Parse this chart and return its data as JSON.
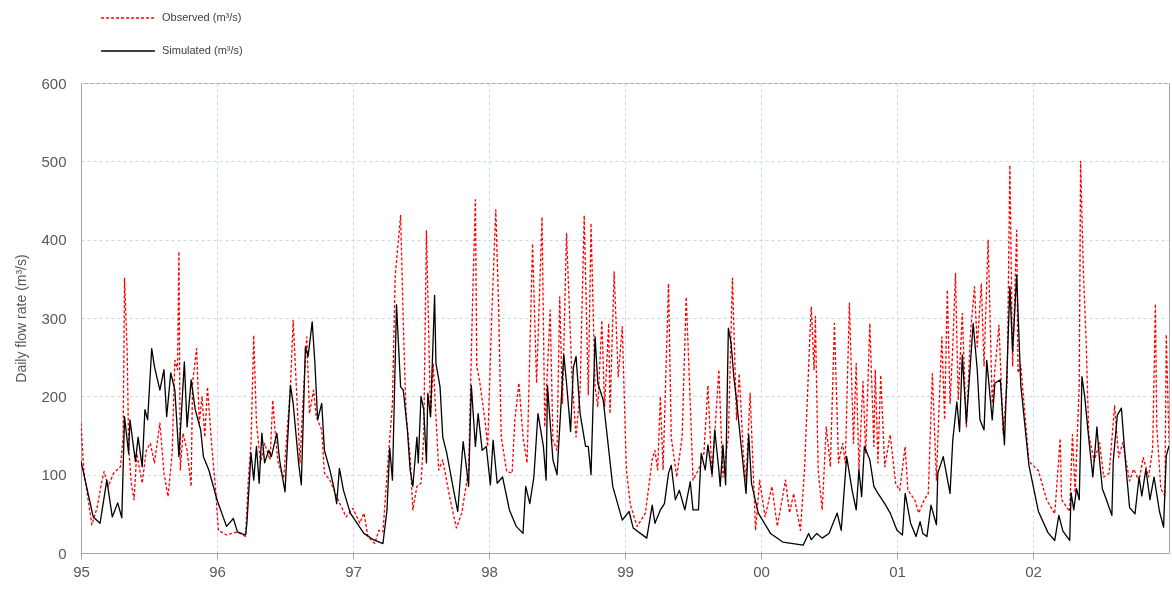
{
  "chart_data": {
    "type": "line",
    "ylabel": "Daily flow rate (m³/s)",
    "xlim": [
      1995,
      2003
    ],
    "xticks": [
      {
        "value": 1995,
        "label": "95"
      },
      {
        "value": 1996,
        "label": "96"
      },
      {
        "value": 1997,
        "label": "97"
      },
      {
        "value": 1998,
        "label": "98"
      },
      {
        "value": 1999,
        "label": "99"
      },
      {
        "value": 2000,
        "label": "00"
      },
      {
        "value": 2001,
        "label": "01"
      },
      {
        "value": 2002,
        "label": "02"
      }
    ],
    "ylim": [
      0,
      600
    ],
    "yticks": [
      0,
      100,
      200,
      300,
      400,
      500,
      600
    ],
    "grid": true,
    "legend": "top left",
    "series": [
      {
        "name": "Observed (m³/s)",
        "color": "#ff0000",
        "line_style": "dotted",
        "x": [
          1995,
          1995.02,
          1995.08,
          1995.12,
          1995.15,
          1995.17,
          1995.2,
          1995.24,
          1995.29,
          1995.31,
          1995.32,
          1995.34,
          1995.35,
          1995.37,
          1995.39,
          1995.41,
          1995.45,
          1995.48,
          1995.51,
          1995.54,
          1995.58,
          1995.61,
          1995.64,
          1995.67,
          1995.69,
          1995.71,
          1995.72,
          1995.73,
          1995.75,
          1995.78,
          1995.81,
          1995.82,
          1995.85,
          1995.87,
          1995.89,
          1995.91,
          1995.93,
          1995.96,
          1995.99,
          1996.01,
          1996.07,
          1996.15,
          1996.21,
          1996.23,
          1996.25,
          1996.27,
          1996.29,
          1996.32,
          1996.35,
          1996.39,
          1996.41,
          1996.43,
          1996.45,
          1996.49,
          1996.52,
          1996.54,
          1996.56,
          1996.58,
          1996.61,
          1996.63,
          1996.66,
          1996.68,
          1996.71,
          1996.73,
          1996.77,
          1996.79,
          1996.83,
          1996.89,
          1996.95,
          1997,
          1997.05,
          1997.08,
          1997.11,
          1997.16,
          1997.19,
          1997.22,
          1997.26,
          1997.29,
          1997.31,
          1997.35,
          1997.37,
          1997.39,
          1997.42,
          1997.44,
          1997.47,
          1997.5,
          1997.52,
          1997.54,
          1997.57,
          1997.59,
          1997.63,
          1997.66,
          1997.71,
          1997.76,
          1997.8,
          1997.85,
          1997.88,
          1997.9,
          1997.91,
          1997.93,
          1997.97,
          1997.99,
          1998.02,
          1998.05,
          1998.07,
          1998.09,
          1998.13,
          1998.17,
          1998.19,
          1998.22,
          1998.25,
          1998.28,
          1998.32,
          1998.35,
          1998.39,
          1998.41,
          1998.45,
          1998.47,
          1998.5,
          1998.52,
          1998.54,
          1998.57,
          1998.61,
          1998.64,
          1998.67,
          1998.7,
          1998.73,
          1998.75,
          1998.78,
          1998.8,
          1998.83,
          1998.85,
          1998.88,
          1998.89,
          1998.92,
          1998.95,
          1998.98,
          1999.01,
          1999.04,
          1999.09,
          1999.15,
          1999.2,
          1999.22,
          1999.24,
          1999.26,
          1999.28,
          1999.32,
          1999.34,
          1999.38,
          1999.42,
          1999.45,
          1999.48,
          1999.5,
          1999.54,
          1999.58,
          1999.61,
          1999.64,
          1999.69,
          1999.72,
          1999.76,
          1999.79,
          1999.82,
          1999.84,
          1999.87,
          1999.89,
          1999.92,
          1999.96,
          1999.99,
          2000.03,
          2000.08,
          2000.12,
          2000.18,
          2000.21,
          2000.24,
          2000.29,
          2000.32,
          2000.36,
          2000.37,
          2000.39,
          2000.4,
          2000.42,
          2000.45,
          2000.48,
          2000.51,
          2000.54,
          2000.57,
          2000.6,
          2000.62,
          2000.65,
          2000.68,
          2000.7,
          2000.72,
          2000.75,
          2000.77,
          2000.8,
          2000.83,
          2000.84,
          2000.86,
          2000.88,
          2000.91,
          2000.95,
          2000.99,
          2001.02,
          2001.06,
          2001.08,
          2001.13,
          2001.16,
          2001.2,
          2001.23,
          2001.26,
          2001.29,
          2001.31,
          2001.33,
          2001.35,
          2001.37,
          2001.39,
          2001.41,
          2001.43,
          2001.45,
          2001.48,
          2001.51,
          2001.54,
          2001.57,
          2001.59,
          2001.62,
          2001.64,
          2001.67,
          2001.7,
          2001.72,
          2001.75,
          2001.78,
          2001.81,
          2001.83,
          2001.85,
          2001.88,
          2001.89,
          2001.91,
          2001.97,
          2002.04,
          2002.1,
          2002.16,
          2002.2,
          2002.21,
          2002.25,
          2002.27,
          2002.29,
          2002.31,
          2002.34,
          2002.35,
          2002.37,
          2002.39,
          2002.41,
          2002.45,
          2002.49,
          2002.52,
          2002.56,
          2002.6,
          2002.63,
          2002.66,
          2002.71,
          2002.74,
          2002.78,
          2002.81,
          2002.85,
          2002.88,
          2002.9,
          2002.91,
          2002.94,
          2002.97,
          2002.98,
          2003
        ],
        "values": [
          166,
          106,
          36,
          59,
          89,
          104,
          85,
          102,
          110,
          148,
          351,
          255,
          136,
          89,
          68,
          127,
          89,
          131,
          140,
          115,
          166,
          102,
          72,
          127,
          246,
          234,
          385,
          106,
          153,
          131,
          85,
          217,
          261,
          166,
          200,
          148,
          212,
          140,
          80,
          29,
          23,
          27,
          21,
          93,
          140,
          278,
          166,
          115,
          140,
          119,
          195,
          148,
          115,
          95,
          166,
          212,
          297,
          225,
          115,
          187,
          276,
          178,
          208,
          174,
          157,
          102,
          93,
          68,
          46,
          57,
          38,
          51,
          21,
          12,
          29,
          27,
          123,
          191,
          353,
          431,
          293,
          178,
          123,
          55,
          85,
          89,
          148,
          412,
          174,
          242,
          106,
          119,
          72,
          32,
          51,
          106,
          327,
          451,
          238,
          221,
          170,
          136,
          302,
          438,
          319,
          148,
          104,
          102,
          170,
          217,
          148,
          115,
          395,
          217,
          429,
          161,
          310,
          144,
          131,
          327,
          191,
          408,
          225,
          148,
          208,
          431,
          202,
          421,
          212,
          187,
          297,
          187,
          293,
          178,
          359,
          225,
          289,
          106,
          61,
          34,
          51,
          119,
          131,
          106,
          200,
          106,
          344,
          148,
          97,
          148,
          327,
          191,
          93,
          106,
          127,
          214,
          97,
          234,
          97,
          148,
          351,
          170,
          229,
          127,
          93,
          204,
          29,
          93,
          46,
          85,
          34,
          93,
          51,
          76,
          29,
          106,
          280,
          314,
          234,
          302,
          106,
          55,
          161,
          110,
          293,
          115,
          140,
          115,
          319,
          140,
          242,
          106,
          219,
          127,
          293,
          136,
          234,
          115,
          227,
          110,
          151,
          89,
          80,
          136,
          80,
          68,
          51,
          68,
          76,
          229,
          93,
          191,
          276,
          170,
          336,
          191,
          263,
          357,
          195,
          306,
          161,
          280,
          340,
          263,
          344,
          238,
          400,
          191,
          234,
          291,
          153,
          217,
          495,
          238,
          412,
          230,
          240,
          117,
          105,
          68,
          50,
          146,
          68,
          58,
          53,
          151,
          77,
          215,
          500,
          362,
          274,
          151,
          117,
          141,
          97,
          102,
          188,
          122,
          141,
          92,
          107,
          92,
          122,
          97,
          134,
          318,
          161,
          82,
          73,
          279,
          141
        ]
      },
      {
        "name": "Simulated (m³/s)",
        "color": "#000000",
        "line_style": "solid",
        "x": [
          1995,
          1995.09,
          1995.14,
          1995.19,
          1995.23,
          1995.27,
          1995.3,
          1995.32,
          1995.35,
          1995.36,
          1995.4,
          1995.42,
          1995.45,
          1995.47,
          1995.49,
          1995.52,
          1995.54,
          1995.58,
          1995.61,
          1995.63,
          1995.66,
          1995.69,
          1995.72,
          1995.76,
          1995.78,
          1995.81,
          1995.84,
          1995.88,
          1995.9,
          1995.94,
          1996,
          1996.07,
          1996.12,
          1996.15,
          1996.21,
          1996.22,
          1996.25,
          1996.27,
          1996.29,
          1996.31,
          1996.33,
          1996.35,
          1996.38,
          1996.4,
          1996.44,
          1996.46,
          1996.5,
          1996.54,
          1996.56,
          1996.6,
          1996.62,
          1996.65,
          1996.67,
          1996.7,
          1996.72,
          1996.74,
          1996.77,
          1996.79,
          1996.83,
          1996.86,
          1996.88,
          1996.9,
          1996.93,
          1996.98,
          1997.08,
          1997.15,
          1997.22,
          1997.25,
          1997.27,
          1997.29,
          1997.32,
          1997.35,
          1997.37,
          1997.4,
          1997.42,
          1997.44,
          1997.47,
          1997.48,
          1997.5,
          1997.52,
          1997.54,
          1997.55,
          1997.57,
          1997.6,
          1997.61,
          1997.64,
          1997.66,
          1997.69,
          1997.74,
          1997.77,
          1997.81,
          1997.83,
          1997.85,
          1997.87,
          1997.9,
          1997.92,
          1997.95,
          1997.98,
          1998.01,
          1998.03,
          1998.06,
          1998.1,
          1998.15,
          1998.2,
          1998.25,
          1998.27,
          1998.3,
          1998.33,
          1998.36,
          1998.4,
          1998.42,
          1998.43,
          1998.45,
          1998.47,
          1998.5,
          1998.53,
          1998.55,
          1998.57,
          1998.6,
          1998.62,
          1998.64,
          1998.67,
          1998.71,
          1998.73,
          1998.75,
          1998.78,
          1998.8,
          1998.84,
          1998.87,
          1998.91,
          1998.98,
          1999.03,
          1999.06,
          1999.16,
          1999.2,
          1999.22,
          1999.26,
          1999.29,
          1999.32,
          1999.34,
          1999.37,
          1999.4,
          1999.44,
          1999.48,
          1999.5,
          1999.54,
          1999.56,
          1999.59,
          1999.61,
          1999.64,
          1999.66,
          1999.69,
          1999.7,
          1999.72,
          1999.74,
          1999.76,
          1999.78,
          1999.8,
          1999.82,
          1999.86,
          1999.89,
          1999.91,
          1999.93,
          1999.98,
          2000.07,
          2000.16,
          2000.31,
          2000.35,
          2000.37,
          2000.41,
          2000.45,
          2000.5,
          2000.56,
          2000.59,
          2000.63,
          2000.67,
          2000.7,
          2000.72,
          2000.74,
          2000.76,
          2000.8,
          2000.83,
          2000.86,
          2000.91,
          2000.95,
          2001,
          2001.04,
          2001.06,
          2001.1,
          2001.14,
          2001.17,
          2001.19,
          2001.22,
          2001.25,
          2001.29,
          2001.3,
          2001.34,
          2001.39,
          2001.41,
          2001.44,
          2001.46,
          2001.48,
          2001.51,
          2001.56,
          2001.59,
          2001.61,
          2001.64,
          2001.66,
          2001.7,
          2001.72,
          2001.76,
          2001.79,
          2001.83,
          2001.85,
          2001.88,
          2001.91,
          2001.97,
          2002.04,
          2002.11,
          2002.16,
          2002.19,
          2002.22,
          2002.27,
          2002.28,
          2002.3,
          2002.32,
          2002.34,
          2002.36,
          2002.38,
          2002.41,
          2002.44,
          2002.47,
          2002.49,
          2002.51,
          2002.54,
          2002.58,
          2002.59,
          2002.62,
          2002.65,
          2002.68,
          2002.71,
          2002.75,
          2002.78,
          2002.8,
          2002.83,
          2002.86,
          2002.89,
          2002.93,
          2002.96,
          2002.98,
          2003
        ],
        "values": [
          117,
          46,
          38,
          93,
          46,
          64,
          45,
          174,
          127,
          170,
          117,
          148,
          110,
          183,
          170,
          261,
          238,
          208,
          234,
          174,
          230,
          208,
          123,
          244,
          161,
          221,
          183,
          157,
          123,
          106,
          68,
          34,
          44,
          27,
          23,
          38,
          128,
          93,
          136,
          89,
          153,
          115,
          131,
          123,
          153,
          119,
          78,
          214,
          191,
          115,
          87,
          263,
          251,
          295,
          242,
          170,
          191,
          131,
          106,
          83,
          63,
          108,
          80,
          51,
          25,
          17,
          12,
          55,
          134,
          93,
          317,
          212,
          208,
          157,
          106,
          85,
          148,
          115,
          200,
          183,
          115,
          204,
          174,
          329,
          242,
          212,
          148,
          127,
          80,
          53,
          142,
          115,
          85,
          214,
          136,
          178,
          131,
          136,
          87,
          144,
          89,
          97,
          55,
          34,
          25,
          85,
          63,
          97,
          178,
          136,
          93,
          214,
          166,
          119,
          100,
          191,
          253,
          217,
          155,
          236,
          251,
          178,
          136,
          136,
          100,
          276,
          217,
          195,
          148,
          85,
          42,
          53,
          32,
          19,
          61,
          38,
          55,
          63,
          102,
          112,
          68,
          80,
          55,
          91,
          55,
          55,
          127,
          106,
          138,
          100,
          157,
          106,
          85,
          138,
          87,
          287,
          268,
          225,
          195,
          127,
          76,
          151,
          89,
          51,
          25,
          14,
          10,
          25,
          17,
          25,
          19,
          25,
          51,
          29,
          123,
          80,
          55,
          106,
          72,
          136,
          119,
          85,
          76,
          63,
          51,
          29,
          23,
          76,
          38,
          21,
          40,
          25,
          21,
          61,
          36,
          102,
          123,
          76,
          144,
          193,
          155,
          253,
          166,
          293,
          234,
          170,
          157,
          246,
          170,
          217,
          221,
          138,
          340,
          257,
          355,
          215,
          112,
          53,
          26,
          16,
          48,
          28,
          16,
          77,
          55,
          82,
          68,
          225,
          200,
          146,
          97,
          161,
          117,
          82,
          68,
          48,
          117,
          176,
          185,
          117,
          58,
          50,
          97,
          73,
          107,
          68,
          97,
          53,
          33,
          124,
          137
        ]
      }
    ]
  }
}
